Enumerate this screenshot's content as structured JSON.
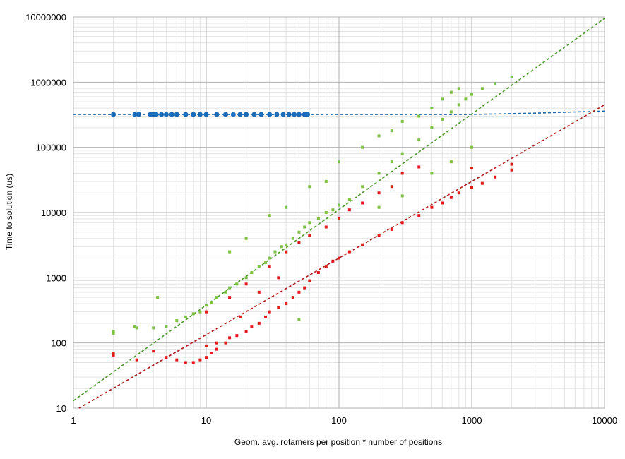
{
  "chart_data": {
    "type": "scatter",
    "title": "",
    "xlabel": "Geom. avg. rotamers per position * number of positions",
    "ylabel": "Time to solution (us)",
    "x_scale": "log",
    "y_scale": "log",
    "xlim": [
      1,
      10000
    ],
    "ylim": [
      10,
      10000000
    ],
    "x_ticks": [
      "1",
      "10",
      "100",
      "1000",
      "10000"
    ],
    "y_ticks": [
      "10",
      "100",
      "1000",
      "10000",
      "100000",
      "1000000",
      "10000000"
    ],
    "grid": true,
    "legend": "none",
    "series": [
      {
        "color": "#1a6bb8",
        "marker": "circle",
        "points": [
          [
            2,
            320000
          ],
          [
            2.9,
            320000
          ],
          [
            3.1,
            320000
          ],
          [
            3.8,
            320000
          ],
          [
            4.0,
            320000
          ],
          [
            4.2,
            320000
          ],
          [
            4.6,
            320000
          ],
          [
            5,
            320000
          ],
          [
            5.5,
            320000
          ],
          [
            6,
            320000
          ],
          [
            7,
            320000
          ],
          [
            8,
            320000
          ],
          [
            9,
            320000
          ],
          [
            10,
            320000
          ],
          [
            12,
            320000
          ],
          [
            14,
            320000
          ],
          [
            16,
            320000
          ],
          [
            18,
            320000
          ],
          [
            20,
            320000
          ],
          [
            23,
            320000
          ],
          [
            26,
            320000
          ],
          [
            30,
            320000
          ],
          [
            34,
            320000
          ],
          [
            38,
            320000
          ],
          [
            42,
            320000
          ],
          [
            46,
            320000
          ],
          [
            50,
            320000
          ],
          [
            55,
            320000
          ],
          [
            58,
            320000
          ]
        ],
        "trend": {
          "style": "dashed",
          "points": [
            [
              1,
              320000
            ],
            [
              1000,
              320000
            ],
            [
              3000,
              335000
            ],
            [
              10000,
              360000
            ]
          ]
        }
      },
      {
        "color": "#7dc242",
        "marker": "square",
        "points": [
          [
            2,
            140
          ],
          [
            2,
            150
          ],
          [
            2.9,
            180
          ],
          [
            3,
            170
          ],
          [
            4,
            170
          ],
          [
            4.3,
            500
          ],
          [
            5,
            180
          ],
          [
            6,
            220
          ],
          [
            7,
            250
          ],
          [
            8,
            280
          ],
          [
            9,
            300
          ],
          [
            10,
            380
          ],
          [
            11,
            420
          ],
          [
            12,
            500
          ],
          [
            14,
            600
          ],
          [
            15,
            700
          ],
          [
            17,
            800
          ],
          [
            20,
            1000
          ],
          [
            22,
            1200
          ],
          [
            25,
            1500
          ],
          [
            28,
            1700
          ],
          [
            30,
            2000
          ],
          [
            33,
            2500
          ],
          [
            37,
            3000
          ],
          [
            40,
            3200
          ],
          [
            45,
            4000
          ],
          [
            50,
            5000
          ],
          [
            55,
            6000
          ],
          [
            60,
            7000
          ],
          [
            70,
            8000
          ],
          [
            80,
            10000
          ],
          [
            90,
            11000
          ],
          [
            100,
            13000
          ],
          [
            120,
            16000
          ],
          [
            150,
            25000
          ],
          [
            200,
            40000
          ],
          [
            250,
            60000
          ],
          [
            300,
            80000
          ],
          [
            400,
            130000
          ],
          [
            500,
            200000
          ],
          [
            600,
            270000
          ],
          [
            700,
            350000
          ],
          [
            800,
            450000
          ],
          [
            900,
            550000
          ],
          [
            1000,
            650000
          ],
          [
            1200,
            800000
          ],
          [
            1500,
            950000
          ],
          [
            2000,
            1200000
          ],
          [
            30,
            9000
          ],
          [
            40,
            12000
          ],
          [
            60,
            25000
          ],
          [
            80,
            30000
          ],
          [
            100,
            60000
          ],
          [
            150,
            100000
          ],
          [
            200,
            150000
          ],
          [
            250,
            180000
          ],
          [
            300,
            250000
          ],
          [
            400,
            300000
          ],
          [
            500,
            400000
          ],
          [
            600,
            550000
          ],
          [
            700,
            700000
          ],
          [
            800,
            800000
          ],
          [
            15,
            2500
          ],
          [
            20,
            4000
          ],
          [
            50,
            230
          ],
          [
            200,
            12000
          ],
          [
            300,
            18000
          ],
          [
            500,
            40000
          ],
          [
            700,
            60000
          ],
          [
            1000,
            100000
          ]
        ],
        "trend": {
          "style": "dashed",
          "points": [
            [
              1,
              13
            ],
            [
              10000,
              9500000
            ]
          ]
        }
      },
      {
        "color": "#e31a1c",
        "marker": "square",
        "points": [
          [
            2,
            65
          ],
          [
            2,
            70
          ],
          [
            3,
            55
          ],
          [
            4,
            75
          ],
          [
            5,
            60
          ],
          [
            6,
            55
          ],
          [
            7,
            50
          ],
          [
            8,
            50
          ],
          [
            9,
            55
          ],
          [
            10,
            60
          ],
          [
            10,
            90
          ],
          [
            11,
            70
          ],
          [
            12,
            80
          ],
          [
            14,
            100
          ],
          [
            15,
            120
          ],
          [
            17,
            130
          ],
          [
            20,
            150
          ],
          [
            22,
            180
          ],
          [
            25,
            200
          ],
          [
            28,
            250
          ],
          [
            30,
            300
          ],
          [
            35,
            350
          ],
          [
            40,
            400
          ],
          [
            45,
            500
          ],
          [
            50,
            600
          ],
          [
            55,
            700
          ],
          [
            60,
            900
          ],
          [
            70,
            1200
          ],
          [
            80,
            1500
          ],
          [
            90,
            1800
          ],
          [
            100,
            2000
          ],
          [
            120,
            2500
          ],
          [
            150,
            3200
          ],
          [
            200,
            4500
          ],
          [
            250,
            5500
          ],
          [
            300,
            7000
          ],
          [
            400,
            9000
          ],
          [
            500,
            12000
          ],
          [
            600,
            14000
          ],
          [
            700,
            17000
          ],
          [
            800,
            20000
          ],
          [
            1000,
            24000
          ],
          [
            1200,
            28000
          ],
          [
            1500,
            35000
          ],
          [
            2000,
            45000
          ],
          [
            2000,
            55000
          ],
          [
            10,
            300
          ],
          [
            15,
            500
          ],
          [
            20,
            800
          ],
          [
            30,
            1500
          ],
          [
            40,
            2500
          ],
          [
            50,
            3500
          ],
          [
            60,
            4500
          ],
          [
            80,
            6000
          ],
          [
            100,
            8000
          ],
          [
            120,
            11000
          ],
          [
            150,
            14000
          ],
          [
            200,
            20000
          ],
          [
            250,
            25000
          ],
          [
            300,
            40000
          ],
          [
            400,
            50000
          ],
          [
            1000,
            48000
          ],
          [
            12,
            100
          ],
          [
            18,
            250
          ],
          [
            25,
            600
          ],
          [
            35,
            1000
          ]
        ],
        "trend": {
          "style": "dashed",
          "points": [
            [
              1.1,
              10
            ],
            [
              10000,
              450000
            ]
          ]
        }
      }
    ]
  }
}
